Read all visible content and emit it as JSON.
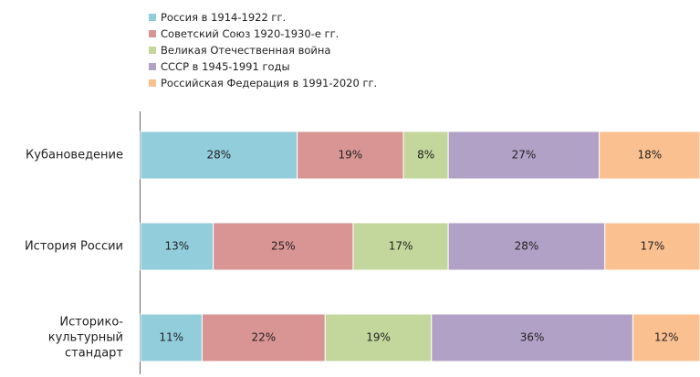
{
  "chart_data": {
    "type": "stacked_barh",
    "categories": [
      "Кубановедение",
      "История России",
      "Историко-культурный стандарт"
    ],
    "series": [
      {
        "name": "Россия в 1914-1922 гг.",
        "color": "#92cddc",
        "values": [
          28,
          13,
          11
        ],
        "value_labels": [
          "28%",
          "13%",
          "11%"
        ]
      },
      {
        "name": "Советский Союз 1920-1930-е гг.",
        "color": "#d99594",
        "values": [
          19,
          25,
          22
        ],
        "value_labels": [
          "19%",
          "25%",
          "22%"
        ]
      },
      {
        "name": "Великая Отечественная война",
        "color": "#c3d69b",
        "values": [
          8,
          17,
          19
        ],
        "value_labels": [
          "8%",
          "17%",
          "19%"
        ]
      },
      {
        "name": "СССР в 1945-1991 годы",
        "color": "#b2a1c7",
        "values": [
          27,
          28,
          36
        ],
        "value_labels": [
          "27%",
          "28%",
          "36%"
        ]
      },
      {
        "name": "Российская Федерация в 1991-2020 гг.",
        "color": "#fac090",
        "values": [
          18,
          17,
          12
        ],
        "value_labels": [
          "18%",
          "17%",
          "12%"
        ]
      }
    ],
    "xlim": [
      0,
      100
    ],
    "legend": "top"
  }
}
